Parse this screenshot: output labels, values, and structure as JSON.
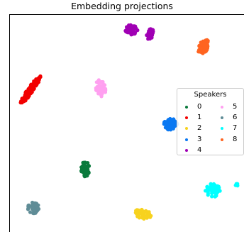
{
  "chart_data": {
    "type": "scatter",
    "title": "Embedding projections",
    "xlabel": "",
    "ylabel": "",
    "legend": {
      "title": "Speakers",
      "placement": "right"
    },
    "series": [
      {
        "name": "0",
        "color": "#0a7a3c",
        "clusters": [
          {
            "x": 120,
            "y": 238
          }
        ]
      },
      {
        "name": "1",
        "color": "#f20000",
        "clusters": [
          {
            "x": 43,
            "y": 127
          }
        ]
      },
      {
        "name": "2",
        "color": "#f7d21e",
        "clusters": [
          {
            "x": 202,
            "y": 302
          }
        ]
      },
      {
        "name": "3",
        "color": "#0a78f2",
        "clusters": [
          {
            "x": 240,
            "y": 175
          }
        ]
      },
      {
        "name": "4",
        "color": "#a000b4",
        "clusters": [
          {
            "x": 185,
            "y": 42
          },
          {
            "x": 212,
            "y": 48
          }
        ]
      },
      {
        "name": "5",
        "color": "#ffa0f0",
        "clusters": [
          {
            "x": 142,
            "y": 124
          }
        ]
      },
      {
        "name": "6",
        "color": "#5f8c96",
        "clusters": [
          {
            "x": 47,
            "y": 293
          }
        ]
      },
      {
        "name": "7",
        "color": "#00ffff",
        "clusters": [
          {
            "x": 300,
            "y": 268
          },
          {
            "x": 334,
            "y": 261
          }
        ]
      },
      {
        "name": "8",
        "color": "#ff6420",
        "clusters": [
          {
            "x": 287,
            "y": 66
          }
        ]
      }
    ],
    "grid": false
  }
}
